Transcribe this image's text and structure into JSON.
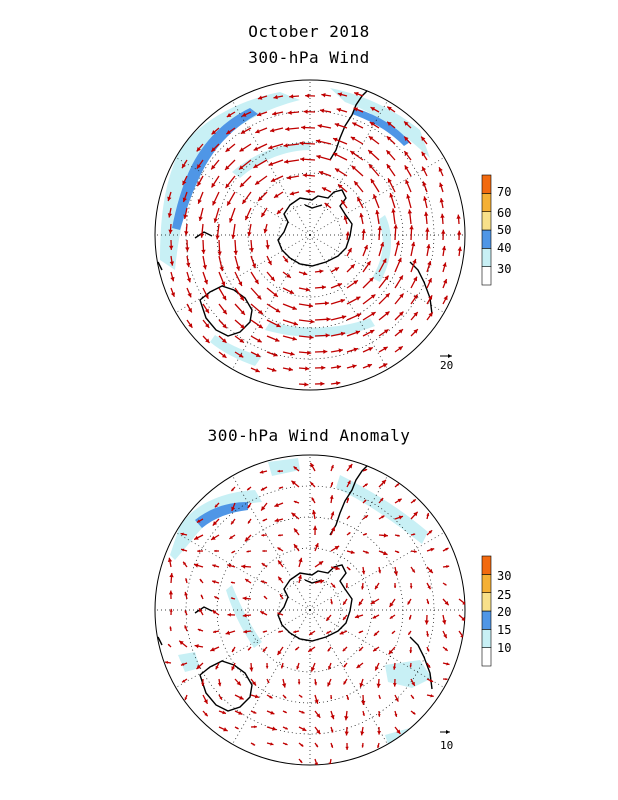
{
  "titles": {
    "month": "October 2018",
    "panel1": "300-hPa Wind",
    "panel2": "300-hPa Wind Anomaly"
  },
  "panel1": {
    "colorbar": {
      "levels": [
        "30",
        "40",
        "50",
        "60",
        "70"
      ],
      "colors": [
        "#ffffff",
        "#c8f0f5",
        "#4f96e6",
        "#f8e08a",
        "#f5b035",
        "#f26a10"
      ]
    },
    "reference_vector_label": "20"
  },
  "panel2": {
    "colorbar": {
      "levels": [
        "10",
        "15",
        "20",
        "25",
        "30"
      ],
      "colors": [
        "#ffffff",
        "#c8f0f5",
        "#4f96e6",
        "#f8e08a",
        "#f5b035",
        "#f26a10"
      ]
    },
    "reference_vector_label": "10"
  },
  "style": {
    "arrow_color": "#c00000",
    "coast_color": "#000000"
  }
}
